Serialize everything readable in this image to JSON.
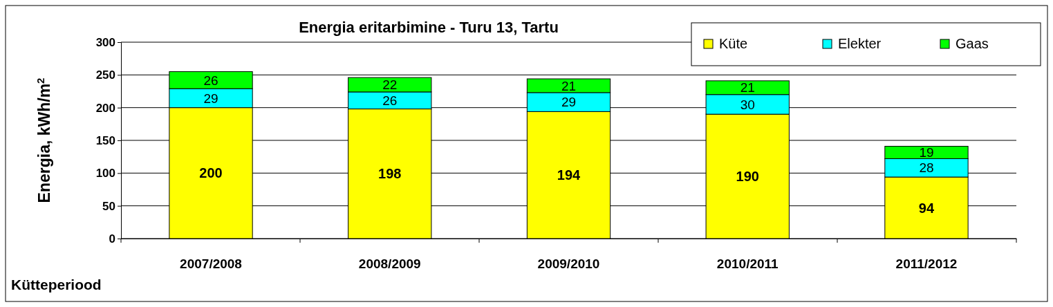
{
  "chart_data": {
    "type": "bar",
    "title": "Energia eritarbimine - Turu 13, Tartu",
    "xlabel": "Kütteperiood",
    "ylabel": "Energia, kWh/m$^{2}$",
    "categories": [
      "2007/2008",
      "2008/2009",
      "2009/2010",
      "2010/2011",
      "2011/2012"
    ],
    "stacked": true,
    "data_labels": true,
    "grid": "y",
    "legend": "top right",
    "ylim": [
      0,
      300
    ],
    "yticks": [
      0,
      50,
      100,
      150,
      200,
      250,
      300
    ],
    "series": [
      {
        "name": "Küte",
        "color": "#ffff00",
        "values": [
          200,
          198,
          194,
          190,
          94
        ]
      },
      {
        "name": "Elekter",
        "color": "#00ffff",
        "values": [
          29,
          26,
          29,
          30,
          28
        ]
      },
      {
        "name": "Gaas",
        "color": "#00ff00",
        "values": [
          26,
          22,
          21,
          21,
          19
        ]
      }
    ]
  }
}
